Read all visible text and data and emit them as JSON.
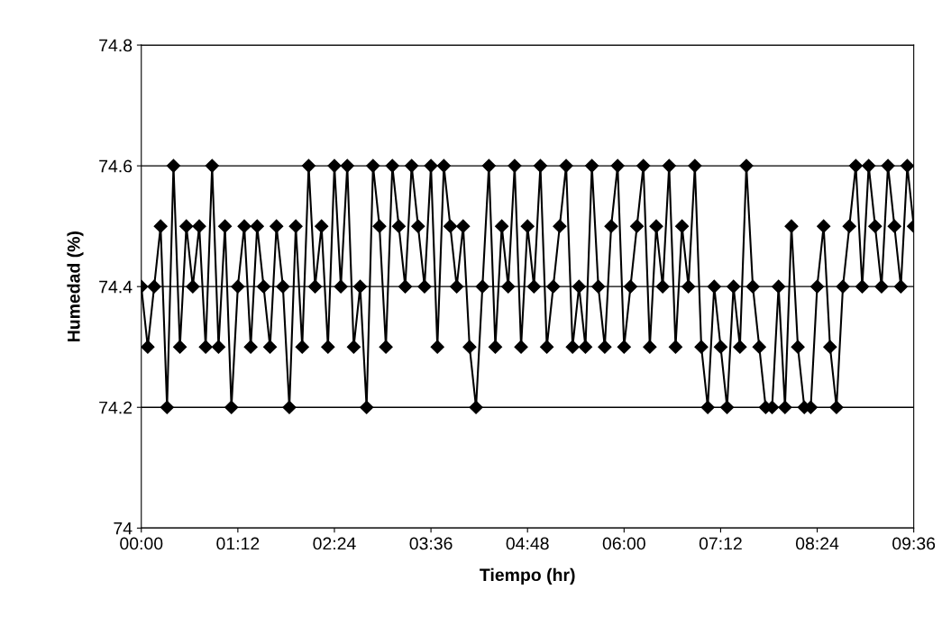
{
  "chart_data": {
    "type": "line",
    "xlabel": "Tiempo (hr)",
    "ylabel": "Humedad (%)",
    "x": [
      0,
      0.08,
      0.16,
      0.24,
      0.32,
      0.4,
      0.48,
      0.56,
      0.64,
      0.72,
      0.8,
      0.88,
      0.96,
      1.04,
      1.12,
      1.2,
      1.28,
      1.36,
      1.44,
      1.52,
      1.6,
      1.68,
      1.76,
      1.84,
      1.92,
      2.0,
      2.08,
      2.16,
      2.24,
      2.32,
      2.4,
      2.48,
      2.56,
      2.64,
      2.72,
      2.8,
      2.88,
      2.96,
      3.04,
      3.12,
      3.2,
      3.28,
      3.36,
      3.44,
      3.52,
      3.6,
      3.68,
      3.76,
      3.84,
      3.92,
      4.0,
      4.08,
      4.16,
      4.24,
      4.32,
      4.4,
      4.48,
      4.56,
      4.64,
      4.72,
      4.8,
      4.88,
      4.96,
      5.04,
      5.12,
      5.2,
      5.28,
      5.36,
      5.44,
      5.52,
      5.6,
      5.68,
      5.76,
      5.84,
      5.92,
      6.0,
      6.08,
      6.16,
      6.24,
      6.32,
      6.4,
      6.48,
      6.56,
      6.64,
      6.72,
      6.8,
      6.88,
      6.96,
      7.04,
      7.12,
      7.2,
      7.28,
      7.36,
      7.44,
      7.52,
      7.6,
      7.68,
      7.76,
      7.84,
      7.92,
      8.0,
      8.08,
      8.16,
      8.24,
      8.32,
      8.4,
      8.48,
      8.56,
      8.64,
      8.72,
      8.8,
      8.88,
      8.96,
      9.04,
      9.12,
      9.2,
      9.28,
      9.36,
      9.44,
      9.52,
      9.6
    ],
    "series": [
      {
        "color": "#000000",
        "values": [
          74.4,
          74.3,
          74.4,
          74.5,
          74.2,
          74.6,
          74.3,
          74.5,
          74.4,
          74.5,
          74.3,
          74.6,
          74.3,
          74.5,
          74.2,
          74.4,
          74.5,
          74.3,
          74.5,
          74.4,
          74.3,
          74.5,
          74.4,
          74.2,
          74.5,
          74.3,
          74.6,
          74.4,
          74.5,
          74.3,
          74.6,
          74.4,
          74.6,
          74.3,
          74.4,
          74.2,
          74.6,
          74.5,
          74.3,
          74.6,
          74.5,
          74.4,
          74.6,
          74.5,
          74.4,
          74.6,
          74.3,
          74.6,
          74.5,
          74.4,
          74.5,
          74.3,
          74.2,
          74.4,
          74.6,
          74.3,
          74.5,
          74.4,
          74.6,
          74.3,
          74.5,
          74.4,
          74.6,
          74.3,
          74.4,
          74.5,
          74.6,
          74.3,
          74.4,
          74.3,
          74.6,
          74.4,
          74.3,
          74.5,
          74.6,
          74.3,
          74.4,
          74.5,
          74.6,
          74.3,
          74.5,
          74.4,
          74.6,
          74.3,
          74.5,
          74.4,
          74.6,
          74.3,
          74.2,
          74.4,
          74.3,
          74.2,
          74.4,
          74.3,
          74.6,
          74.4,
          74.3,
          74.2,
          74.2,
          74.4,
          74.2,
          74.5,
          74.3,
          74.2,
          74.2,
          74.4,
          74.5,
          74.3,
          74.2,
          74.4,
          74.5,
          74.6,
          74.4,
          74.6,
          74.5,
          74.4,
          74.6,
          74.5,
          74.4,
          74.6,
          74.5
        ]
      }
    ],
    "xlim": [
      0,
      9.6
    ],
    "xticks": [
      {
        "value": 0,
        "label": "00:00"
      },
      {
        "value": 1.2,
        "label": "01:12"
      },
      {
        "value": 2.4,
        "label": "02:24"
      },
      {
        "value": 3.6,
        "label": "03:36"
      },
      {
        "value": 4.8,
        "label": "04:48"
      },
      {
        "value": 6.0,
        "label": "06:00"
      },
      {
        "value": 7.2,
        "label": "07:12"
      },
      {
        "value": 8.4,
        "label": "08:24"
      },
      {
        "value": 9.6,
        "label": "09:36"
      }
    ],
    "ylim": [
      74,
      74.8
    ],
    "yticks": [
      74,
      74.2,
      74.4,
      74.6,
      74.8
    ],
    "grid": "y",
    "marker": "diamond",
    "line_style": "solid",
    "legend": false
  }
}
